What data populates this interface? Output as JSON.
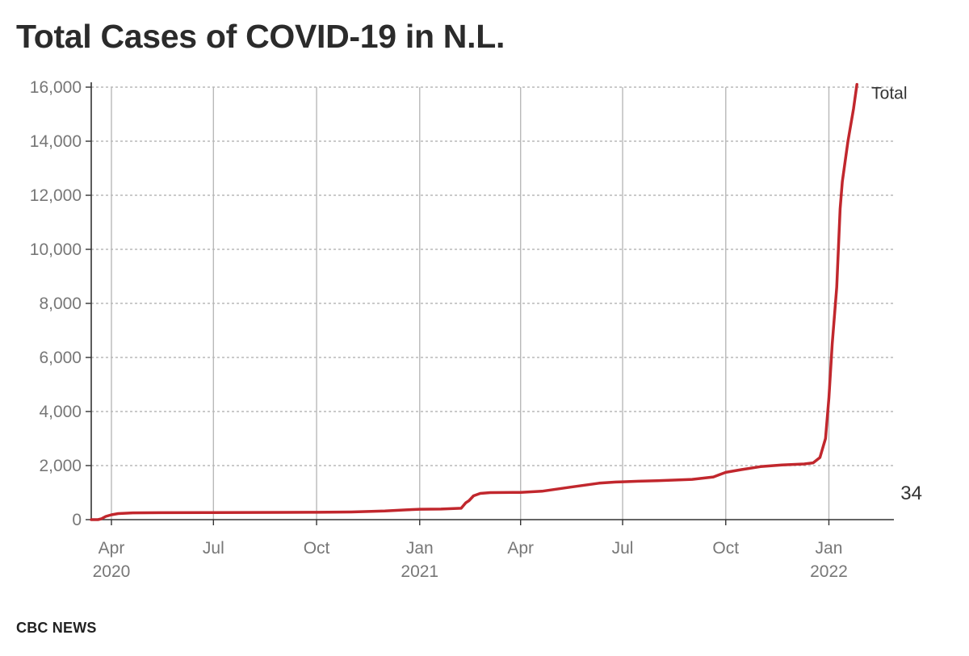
{
  "title": "Total Cases of COVID-19 in N.L.",
  "source": "CBC NEWS",
  "colors": {
    "line": "#c1272d",
    "grid": "#b9b9b9",
    "axis": "#333333"
  },
  "chart_data": {
    "type": "line",
    "title": "Total Cases of COVID-19 in N.L.",
    "xlabel": "",
    "ylabel": "",
    "ylim": [
      0,
      16000
    ],
    "y_ticks": [
      0,
      2000,
      4000,
      6000,
      8000,
      10000,
      12000,
      14000,
      16000
    ],
    "y_tick_labels": [
      "0",
      "2,000",
      "4,000",
      "6,000",
      "8,000",
      "10,000",
      "12,000",
      "14,000",
      "16,000"
    ],
    "xlim": [
      "2020-03-14",
      "2022-02-28"
    ],
    "x_ticks": [
      {
        "date": "2020-04-01",
        "label": "Apr",
        "year": "2020"
      },
      {
        "date": "2020-07-01",
        "label": "Jul",
        "year": ""
      },
      {
        "date": "2020-10-01",
        "label": "Oct",
        "year": ""
      },
      {
        "date": "2021-01-01",
        "label": "Jan",
        "year": "2021"
      },
      {
        "date": "2021-04-01",
        "label": "Apr",
        "year": ""
      },
      {
        "date": "2021-07-01",
        "label": "Jul",
        "year": ""
      },
      {
        "date": "2021-10-01",
        "label": "Oct",
        "year": ""
      },
      {
        "date": "2022-01-01",
        "label": "Jan",
        "year": "2022"
      }
    ],
    "grid": true,
    "series": [
      {
        "name": "Total",
        "points": [
          [
            "2020-03-14",
            0
          ],
          [
            "2020-03-20",
            0
          ],
          [
            "2020-03-23",
            30
          ],
          [
            "2020-03-27",
            120
          ],
          [
            "2020-04-01",
            180
          ],
          [
            "2020-04-07",
            225
          ],
          [
            "2020-04-20",
            250
          ],
          [
            "2020-05-15",
            258
          ],
          [
            "2020-07-01",
            262
          ],
          [
            "2020-09-01",
            268
          ],
          [
            "2020-10-01",
            272
          ],
          [
            "2020-11-01",
            285
          ],
          [
            "2020-12-01",
            320
          ],
          [
            "2020-12-20",
            360
          ],
          [
            "2021-01-01",
            385
          ],
          [
            "2021-01-20",
            390
          ],
          [
            "2021-02-07",
            420
          ],
          [
            "2021-02-11",
            620
          ],
          [
            "2021-02-14",
            700
          ],
          [
            "2021-02-18",
            880
          ],
          [
            "2021-02-24",
            970
          ],
          [
            "2021-03-05",
            1000
          ],
          [
            "2021-04-01",
            1010
          ],
          [
            "2021-04-20",
            1050
          ],
          [
            "2021-05-15",
            1200
          ],
          [
            "2021-06-10",
            1350
          ],
          [
            "2021-06-25",
            1390
          ],
          [
            "2021-07-01",
            1400
          ],
          [
            "2021-07-15",
            1420
          ],
          [
            "2021-08-01",
            1440
          ],
          [
            "2021-09-01",
            1490
          ],
          [
            "2021-09-20",
            1580
          ],
          [
            "2021-10-01",
            1750
          ],
          [
            "2021-10-15",
            1850
          ],
          [
            "2021-11-01",
            1960
          ],
          [
            "2021-11-20",
            2020
          ],
          [
            "2021-12-10",
            2060
          ],
          [
            "2021-12-18",
            2100
          ],
          [
            "2021-12-24",
            2300
          ],
          [
            "2021-12-29",
            3000
          ],
          [
            "2022-01-01",
            4500
          ],
          [
            "2022-01-04",
            6500
          ],
          [
            "2022-01-08",
            8600
          ],
          [
            "2022-01-11",
            11500
          ],
          [
            "2022-01-13",
            12500
          ],
          [
            "2022-01-18",
            14000
          ],
          [
            "2022-01-23",
            15200
          ],
          [
            "2022-01-26",
            16100
          ]
        ]
      }
    ],
    "annotations": [
      {
        "text": "Total",
        "attached_to": "line-end"
      },
      {
        "text": "34",
        "placement": "right-bottom"
      }
    ]
  }
}
